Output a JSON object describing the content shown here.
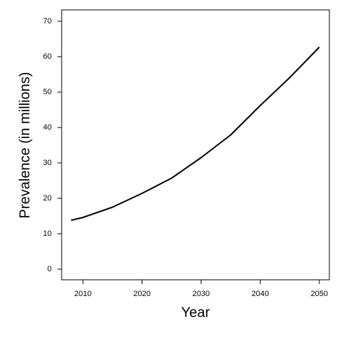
{
  "chart_data": {
    "type": "line",
    "x_label": "Year",
    "y_label": "Prevalence (in millions)",
    "x": [
      2008,
      2010,
      2015,
      2020,
      2025,
      2030,
      2035,
      2040,
      2045,
      2050
    ],
    "series": [
      {
        "color": "#000000",
        "values": [
          13.8,
          14.6,
          17.5,
          21.4,
          25.7,
          31.5,
          37.9,
          46.2,
          54.1,
          62.7
        ]
      }
    ],
    "xlim": [
      2006.4,
      2051.7
    ],
    "xticks": [
      2010,
      2020,
      2030,
      2040,
      2050
    ],
    "ylim": [
      -3,
      73.2
    ],
    "yticks": [
      0,
      10,
      20,
      30,
      40,
      50,
      60,
      70
    ]
  }
}
